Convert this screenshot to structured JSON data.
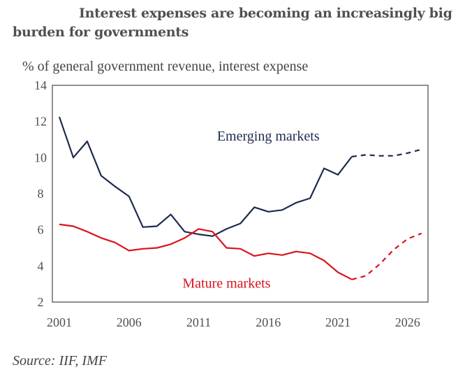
{
  "chart_data": {
    "type": "line",
    "title": "Interest expenses are becoming an increasingly big burden for governments",
    "ylabel": "% of general government revenue, interest expense",
    "xlabel": "",
    "source": "Source: IIF, IMF",
    "x": [
      2001,
      2002,
      2003,
      2004,
      2005,
      2006,
      2007,
      2008,
      2009,
      2010,
      2011,
      2012,
      2013,
      2014,
      2015,
      2016,
      2017,
      2018,
      2019,
      2020,
      2021,
      2022,
      2023,
      2024,
      2025,
      2026,
      2027
    ],
    "xlim": [
      2000.5,
      2027.5
    ],
    "ylim": [
      2,
      14
    ],
    "xticks": [
      "2001",
      "2006",
      "2011",
      "2016",
      "2021",
      "2026"
    ],
    "xtick_values": [
      2001,
      2006,
      2011,
      2016,
      2021,
      2026
    ],
    "yticks": [
      "2",
      "4",
      "6",
      "8",
      "10",
      "12",
      "14"
    ],
    "ytick_values": [
      2,
      4,
      6,
      8,
      10,
      12,
      14
    ],
    "grid": false,
    "series": [
      {
        "name": "Emerging markets",
        "color": "#1f2a4f",
        "values": [
          12.25,
          10.0,
          10.9,
          9.0,
          8.4,
          7.85,
          6.15,
          6.2,
          6.85,
          5.9,
          5.75,
          5.65,
          6.05,
          6.35,
          7.25,
          7.0,
          7.1,
          7.5,
          7.75,
          9.4,
          9.05,
          10.05,
          10.15,
          10.1,
          10.1,
          10.25,
          10.45
        ],
        "projection_from": 2022,
        "label_anchor": {
          "year": 2016,
          "value": 10.95
        }
      },
      {
        "name": "Mature markets",
        "color": "#d9141e",
        "values": [
          6.3,
          6.2,
          5.9,
          5.55,
          5.3,
          4.85,
          4.95,
          5.0,
          5.2,
          5.55,
          6.05,
          5.9,
          5.0,
          4.95,
          4.55,
          4.7,
          4.6,
          4.8,
          4.7,
          4.3,
          3.65,
          3.25,
          3.45,
          4.1,
          4.9,
          5.5,
          5.8
        ],
        "projection_from": 2022,
        "label_anchor": {
          "year": 2013,
          "value": 2.8
        }
      }
    ]
  }
}
